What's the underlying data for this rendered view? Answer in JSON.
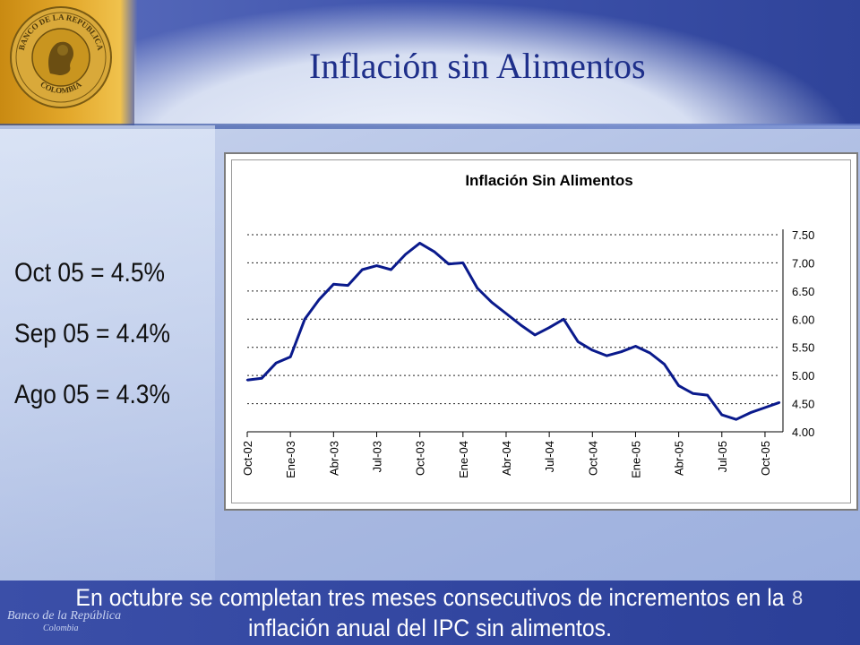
{
  "slide": {
    "title": "Inflación sin Alimentos",
    "stats": [
      "Oct 05  = 4.5%",
      "Sep 05 = 4.4%",
      "Ago 05  = 4.3%"
    ],
    "caption_line1": "En octubre se completan tres meses consecutivos de incrementos en la",
    "caption_line2": "inflación anual del IPC sin alimentos.",
    "slide_number": "8",
    "seal_text_top": "BANCO DE LA REPUBLICA",
    "seal_text_bottom": "COLOMBIA",
    "signature": "Banco de la República",
    "signature_sub": "Colombia"
  },
  "colors": {
    "series": "#0a1a8c",
    "title": "#1e2f8a",
    "band": "#3b4fa8"
  },
  "chart_data": {
    "type": "line",
    "title": "Inflación Sin Alimentos",
    "xlabel": "",
    "ylabel": "",
    "ylim": [
      4.0,
      7.5
    ],
    "yticks": [
      "4.00",
      "4.50",
      "5.00",
      "5.50",
      "6.00",
      "6.50",
      "7.00",
      "7.50"
    ],
    "ytick_values": [
      4.0,
      4.5,
      5.0,
      5.5,
      6.0,
      6.5,
      7.0,
      7.5
    ],
    "y_axis_side": "right",
    "grid": "horizontal dotted",
    "legend": "none",
    "x_ticks": [
      "Oct-02",
      "Ene-03",
      "Abr-03",
      "Jul-03",
      "Oct-03",
      "Ene-04",
      "Abr-04",
      "Jul-04",
      "Oct-04",
      "Ene-05",
      "Abr-05",
      "Jul-05",
      "Oct-05"
    ],
    "series": [
      {
        "values": [
          4.92,
          4.95,
          5.22,
          5.33,
          6.0,
          6.35,
          6.62,
          6.6,
          6.88,
          6.95,
          6.88,
          7.15,
          7.35,
          7.2,
          6.98,
          7.0,
          6.55,
          6.3,
          6.1,
          5.9,
          5.72,
          5.85,
          6.0,
          5.6,
          5.45,
          5.35,
          5.42,
          5.52,
          5.4,
          5.2,
          4.82,
          4.68,
          4.65,
          4.3,
          4.22,
          4.34,
          4.43,
          4.52
        ]
      }
    ]
  }
}
